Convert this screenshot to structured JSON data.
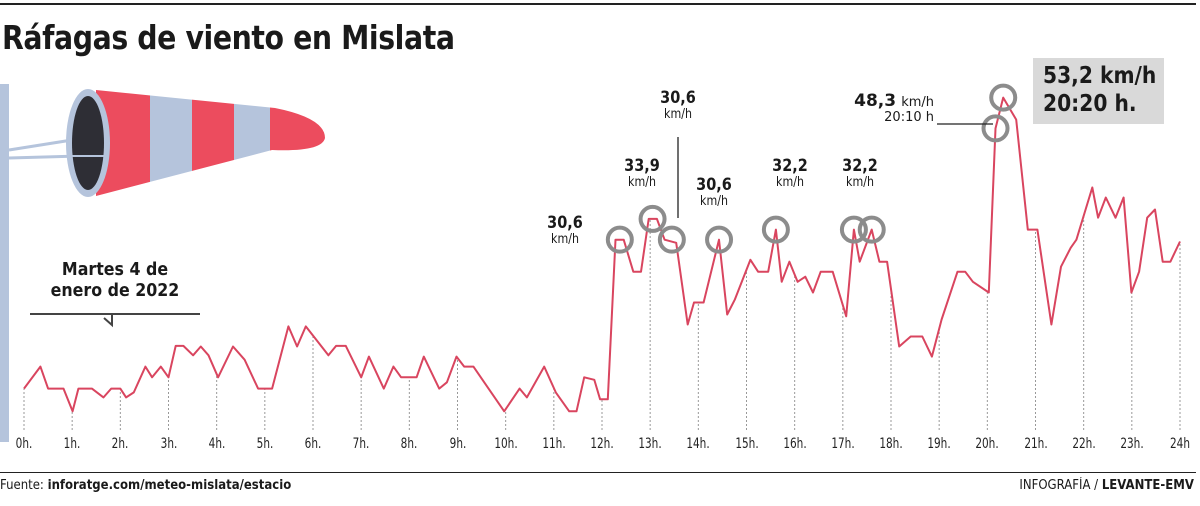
{
  "title": "Ráfagas de viento en Mislata",
  "date_label": [
    "Martes 4 de",
    "enero de 2022"
  ],
  "max_box": {
    "value": "53,2 km/h",
    "time": "20:20 h."
  },
  "source": {
    "label": "Fuente:",
    "url": "inforatge.com/meteo-mislata/estacio"
  },
  "credit": {
    "label": "INFOGRAFÍA /",
    "brand": "LEVANTE-EMV"
  },
  "colors": {
    "line": "#d9455f",
    "circle": "#8c8c8c",
    "windsock_red": "#ec4c5e",
    "windsock_blue": "#b5c4dc",
    "box": "#d9d9d9"
  },
  "chart_data": {
    "type": "line",
    "title": "Ráfagas de viento en Mislata",
    "xlabel": "",
    "ylabel": "",
    "xlim": [
      0,
      24
    ],
    "ylim": [
      0,
      56
    ],
    "grid": "dashed vertical lines at each hour",
    "x_tick_labels": [
      "0h.",
      "1h.",
      "2h.",
      "3h.",
      "4h.",
      "5h.",
      "6h.",
      "7h.",
      "8h.",
      "9h.",
      "10h.",
      "11h.",
      "12h.",
      "13h.",
      "14h.",
      "15h.",
      "16h.",
      "17h.",
      "18h.",
      "19h.",
      "20h.",
      "21h.",
      "22h.",
      "23h.",
      "24h"
    ],
    "x_hours": [
      0,
      0.34,
      0.5,
      0.82,
      1.01,
      1.13,
      1.41,
      1.65,
      1.81,
      2.0,
      2.12,
      2.28,
      2.52,
      2.66,
      2.84,
      3.0,
      3.15,
      3.31,
      3.51,
      3.67,
      3.83,
      4.03,
      4.34,
      4.58,
      4.86,
      5.15,
      5.49,
      5.67,
      5.85,
      6.32,
      6.48,
      6.68,
      7.0,
      7.16,
      7.47,
      7.67,
      7.83,
      8.15,
      8.3,
      8.62,
      8.78,
      8.98,
      9.14,
      9.33,
      9.97,
      10.29,
      10.44,
      10.8,
      11.04,
      11.32,
      11.47,
      11.63,
      11.84,
      11.96,
      12.12,
      12.28,
      12.45,
      12.65,
      12.81,
      12.97,
      13.14,
      13.3,
      13.54,
      13.78,
      13.91,
      14.11,
      14.43,
      14.6,
      14.76,
      15.08,
      15.24,
      15.45,
      15.61,
      15.73,
      15.89,
      16.06,
      16.22,
      16.38,
      16.54,
      16.79,
      17.07,
      17.23,
      17.35,
      17.6,
      17.76,
      17.92,
      18.17,
      18.41,
      18.65,
      18.85,
      19.05,
      19.38,
      19.54,
      19.7,
      20.03,
      20.17,
      20.33,
      20.6,
      20.84,
      21.04,
      21.33,
      21.53,
      21.73,
      21.85,
      22.18,
      22.3,
      22.46,
      22.66,
      22.83,
      22.99,
      23.15,
      23.32,
      23.48,
      23.64,
      23.8,
      24.0
    ],
    "values_kmh": [
      6.9,
      10.4,
      6.9,
      6.9,
      3.3,
      6.9,
      6.9,
      5.5,
      6.9,
      6.9,
      5.5,
      6.3,
      10.4,
      8.7,
      10.4,
      8.7,
      13.7,
      13.7,
      12.2,
      13.6,
      12.2,
      8.7,
      13.6,
      11.5,
      6.9,
      6.9,
      16.8,
      13.6,
      16.8,
      12.2,
      13.7,
      13.7,
      8.7,
      12.0,
      6.9,
      10.4,
      8.7,
      8.7,
      12.0,
      6.9,
      7.9,
      12.0,
      10.4,
      10.4,
      3.3,
      6.9,
      5.5,
      10.4,
      6.3,
      3.3,
      3.3,
      8.7,
      8.3,
      5.2,
      5.2,
      30.6,
      30.6,
      25.5,
      25.5,
      33.9,
      33.9,
      30.6,
      30.1,
      17.1,
      20.6,
      20.6,
      30.6,
      18.7,
      21.1,
      27.4,
      25.5,
      25.5,
      32.2,
      23.9,
      27.1,
      23.9,
      24.7,
      22.2,
      25.5,
      25.5,
      18.4,
      32.2,
      27.1,
      32.2,
      27.1,
      27.1,
      13.6,
      15.2,
      15.2,
      12.0,
      17.9,
      25.5,
      25.5,
      23.9,
      22.2,
      48.3,
      53.2,
      49.7,
      32.2,
      32.2,
      17.1,
      26.3,
      29.3,
      30.6,
      38.9,
      34.1,
      37.3,
      34.1,
      37.3,
      22.2,
      25.5,
      34.1,
      35.4,
      27.1,
      27.1,
      30.3
    ],
    "annotations": [
      {
        "value": "30,6",
        "unit": "km/h",
        "hour": 12.37,
        "kmh": 30.6
      },
      {
        "value": "33,9",
        "unit": "km/h",
        "hour": 13.05,
        "kmh": 33.9
      },
      {
        "value": "30,6",
        "unit": "km/h",
        "hour": 13.45,
        "kmh": 30.6
      },
      {
        "value": "30,6",
        "unit": "km/h",
        "hour": 14.43,
        "kmh": 30.6
      },
      {
        "value": "32,2",
        "unit": "km/h",
        "hour": 15.61,
        "kmh": 32.2
      },
      {
        "value": "32,2",
        "unit": "km/h",
        "hour": 17.23,
        "kmh": 32.2
      },
      {
        "value": "",
        "unit": "",
        "hour": 17.6,
        "kmh": 32.2
      },
      {
        "value": "48,3",
        "unit": "km/h",
        "time": "20:10 h",
        "hour": 20.17,
        "kmh": 48.3
      },
      {
        "value": "",
        "unit": "",
        "hour": 20.33,
        "kmh": 53.2
      }
    ]
  }
}
